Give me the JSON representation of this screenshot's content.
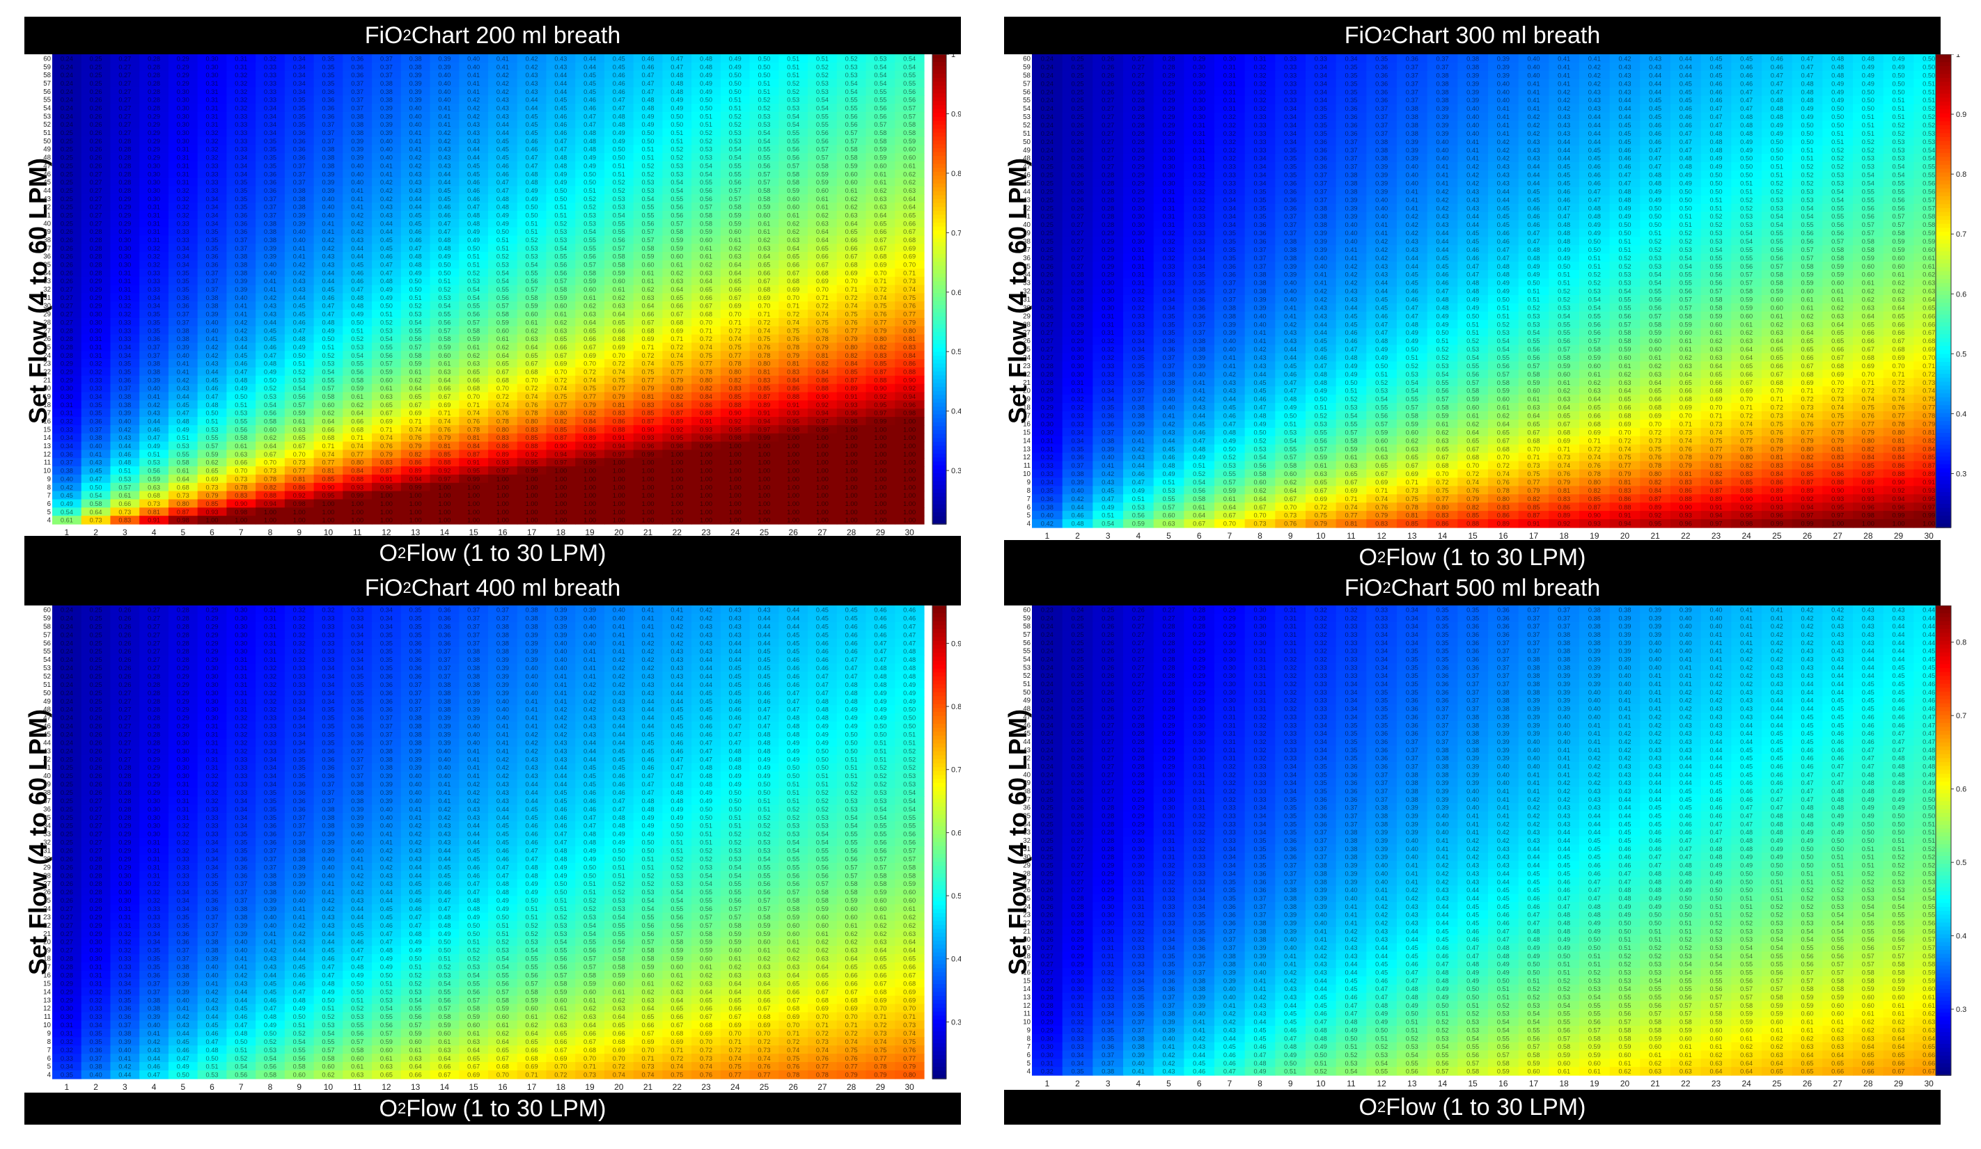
{
  "chart_data": [
    {
      "type": "heatmap",
      "title": "FiO2 Chart 200 ml breath",
      "title_parts": {
        "pre": "FiO",
        "sub": "2",
        "post": " Chart 200 ml breath"
      },
      "xlabel": "O2 Flow (1 to 30 LPM)",
      "xlabel_parts": {
        "pre": "O",
        "sub": "2",
        "post": " Flow (1 to 30 LPM)"
      },
      "ylabel": "Set Flow (4 to 60 LPM)",
      "x_range": [
        1,
        30
      ],
      "y_range": [
        4,
        60
      ],
      "breath_volume_ml": 200,
      "colorbar_ticks": [
        "0.3",
        "0.4",
        "0.5",
        "0.6",
        "0.7",
        "0.8",
        "0.9",
        "1"
      ],
      "colorbar_range": [
        0.21,
        1.0
      ],
      "colormap": "jet",
      "cell_value_formula": "min(1, 0.21 + 0.79*(x + 1.3)/(y + 0.5*x)) approx"
    },
    {
      "type": "heatmap",
      "title": "FiO2 Chart 300 ml breath",
      "title_parts": {
        "pre": "FiO",
        "sub": "2",
        "post": " Chart 300 ml breath"
      },
      "xlabel": "O2 Flow (1 to 30 LPM)",
      "xlabel_parts": {
        "pre": "O",
        "sub": "2",
        "post": " Flow (1 to 30 LPM)"
      },
      "ylabel": "Set Flow (4 to 60 LPM)",
      "x_range": [
        1,
        30
      ],
      "y_range": [
        4,
        60
      ],
      "breath_volume_ml": 300,
      "colorbar_ticks": [
        "0.3",
        "0.4",
        "0.5",
        "0.6",
        "0.7",
        "0.8",
        "0.9",
        "1"
      ],
      "colorbar_range": [
        0.21,
        1.0
      ],
      "colormap": "jet"
    },
    {
      "type": "heatmap",
      "title": "FiO2 Chart 400 ml breath",
      "title_parts": {
        "pre": "FiO",
        "sub": "2",
        "post": " Chart 400 ml breath"
      },
      "xlabel": "O2 Flow (1 to 30 LPM)",
      "xlabel_parts": {
        "pre": "O",
        "sub": "2",
        "post": " Flow (1 to 30 LPM)"
      },
      "ylabel": "Set Flow (4 to 60 LPM)",
      "x_range": [
        1,
        30
      ],
      "y_range": [
        4,
        60
      ],
      "breath_volume_ml": 400,
      "colorbar_ticks": [
        "0.3",
        "0.4",
        "0.5",
        "0.6",
        "0.7",
        "0.8",
        "0.9"
      ],
      "colorbar_range": [
        0.21,
        0.96
      ],
      "colormap": "jet"
    },
    {
      "type": "heatmap",
      "title": "FiO2 Chart 500 ml breath",
      "title_parts": {
        "pre": "FiO",
        "sub": "2",
        "post": " Chart 500 ml breath"
      },
      "xlabel": "O2 Flow (1 to 30 LPM)",
      "xlabel_parts": {
        "pre": "O",
        "sub": "2",
        "post": " Flow (1 to 30 LPM)"
      },
      "ylabel": "Set Flow (4 to 60 LPM)",
      "x_range": [
        1,
        30
      ],
      "y_range": [
        4,
        60
      ],
      "breath_volume_ml": 500,
      "colorbar_ticks": [
        "0.3",
        "0.4",
        "0.5",
        "0.6",
        "0.7",
        "0.8"
      ],
      "colorbar_range": [
        0.21,
        0.85
      ],
      "colormap": "jet"
    }
  ]
}
